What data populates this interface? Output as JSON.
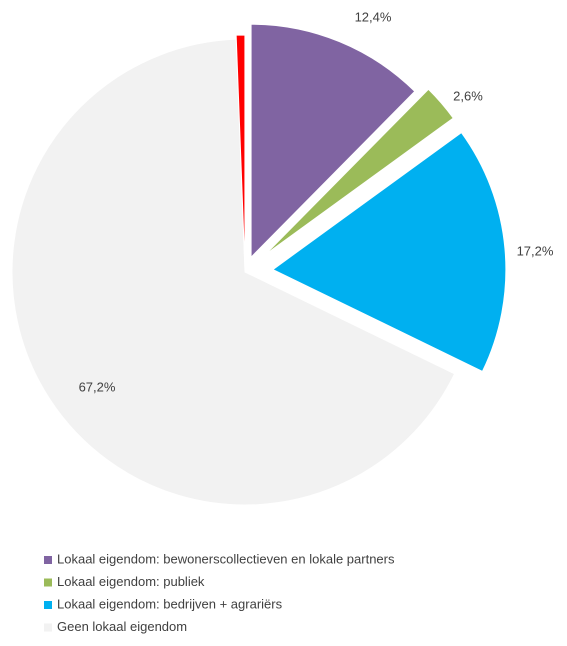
{
  "chart_data": {
    "type": "pie",
    "categories": [
      "Lokaal eigendom: bewonerscollectieven en lokale partners",
      "Lokaal eigendom: publiek",
      "Lokaal eigendom: bedrijven + agrariërs",
      "Geen lokaal eigendom",
      null
    ],
    "values": [
      12.4,
      2.6,
      17.2,
      67.2,
      0.6
    ],
    "value_labels": [
      "12,4%",
      "2,6%",
      "17,2%",
      "67,2%",
      null
    ],
    "colors": [
      "#8064a2",
      "#9bbb59",
      "#00b0f0",
      "#f2f2f2",
      "#ff0000"
    ],
    "legend": "bottom-left"
  }
}
